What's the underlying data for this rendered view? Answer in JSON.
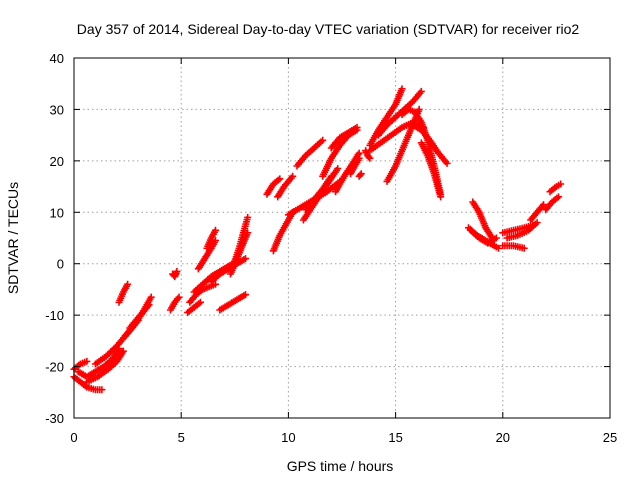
{
  "chart_data": {
    "type": "scatter",
    "title": "Day 357 of 2014, Sidereal Day-to-day VTEC variation (SDTVAR) for receiver rio2",
    "xlabel": "GPS time / hours",
    "ylabel": "SDTVAR / TECUs",
    "xlim": [
      0,
      25
    ],
    "ylim": [
      -30,
      40
    ],
    "xticks": [
      "0",
      "5",
      "10",
      "15",
      "20",
      "25"
    ],
    "yticks": [
      "-30",
      "-20",
      "-10",
      "0",
      "10",
      "20",
      "30",
      "40"
    ],
    "grid": true,
    "marker": "plus",
    "color": "#ff0000",
    "series": [
      {
        "name": "arc-1",
        "x": [
          0.0,
          0.3,
          0.6
        ],
        "y": [
          -20.5,
          -19.5,
          -19.0
        ]
      },
      {
        "name": "arc-2",
        "x": [
          0.0,
          0.3,
          0.6,
          1.0,
          1.3
        ],
        "y": [
          -22.0,
          -23.0,
          -24.0,
          -24.5,
          -24.5
        ]
      },
      {
        "name": "arc-3",
        "x": [
          0.2,
          0.6,
          1.0,
          1.4,
          1.8,
          2.1
        ],
        "y": [
          -21.0,
          -22.0,
          -21.0,
          -20.0,
          -18.5,
          -16.5
        ]
      },
      {
        "name": "arc-4",
        "x": [
          0.6,
          1.1,
          1.6,
          2.0,
          2.3
        ],
        "y": [
          -23.0,
          -22.0,
          -20.5,
          -19.0,
          -17.0
        ]
      },
      {
        "name": "arc-5",
        "x": [
          1.0,
          1.5,
          2.0,
          2.5,
          3.0
        ],
        "y": [
          -19.5,
          -18.0,
          -16.0,
          -13.5,
          -11.0
        ]
      },
      {
        "name": "arc-6",
        "x": [
          2.1,
          2.3,
          2.5
        ],
        "y": [
          -7.5,
          -5.5,
          -4.0
        ]
      },
      {
        "name": "arc-7",
        "x": [
          2.4,
          2.8,
          3.2,
          3.6
        ],
        "y": [
          -14.0,
          -12.0,
          -9.5,
          -6.5
        ]
      },
      {
        "name": "arc-8",
        "x": [
          2.6,
          3.0,
          3.5
        ],
        "y": [
          -12.5,
          -10.5,
          -8.0
        ]
      },
      {
        "name": "arc-9",
        "x": [
          4.6,
          4.7,
          4.8
        ],
        "y": [
          -2.0,
          -2.5,
          -1.5
        ]
      },
      {
        "name": "arc-10",
        "x": [
          4.5,
          4.7,
          4.9
        ],
        "y": [
          -9.0,
          -7.5,
          -6.5
        ]
      },
      {
        "name": "arc-11",
        "x": [
          5.4,
          5.7,
          6.0,
          6.3,
          6.6
        ],
        "y": [
          -7.5,
          -6.0,
          -5.0,
          -4.5,
          -4.0
        ]
      },
      {
        "name": "arc-12",
        "x": [
          5.6,
          6.0,
          6.4,
          6.8,
          7.2,
          7.6
        ],
        "y": [
          -5.5,
          -4.0,
          -2.5,
          -1.5,
          -0.5,
          0.5
        ]
      },
      {
        "name": "arc-13",
        "x": [
          5.8,
          6.1,
          6.4,
          6.6
        ],
        "y": [
          -1.0,
          1.0,
          3.0,
          4.5
        ]
      },
      {
        "name": "arc-14",
        "x": [
          6.2,
          6.4,
          6.6
        ],
        "y": [
          3.0,
          5.0,
          6.5
        ]
      },
      {
        "name": "arc-15",
        "x": [
          5.3,
          5.6,
          5.9
        ],
        "y": [
          -9.5,
          -8.5,
          -7.5
        ]
      },
      {
        "name": "arc-16",
        "x": [
          6.4,
          6.8,
          7.2,
          7.6,
          8.0
        ],
        "y": [
          -3.5,
          -2.0,
          -1.0,
          0.0,
          1.0
        ]
      },
      {
        "name": "arc-17",
        "x": [
          6.8,
          7.2,
          7.6,
          8.0
        ],
        "y": [
          -9.0,
          -8.0,
          -7.0,
          -6.0
        ]
      },
      {
        "name": "arc-18",
        "x": [
          7.5,
          7.7,
          7.9,
          8.1
        ],
        "y": [
          0.5,
          3.0,
          6.0,
          9.0
        ]
      },
      {
        "name": "arc-19",
        "x": [
          7.3,
          7.6,
          7.9,
          8.1
        ],
        "y": [
          -2.0,
          1.0,
          4.0,
          6.0
        ]
      },
      {
        "name": "arc-20",
        "x": [
          9.0,
          9.3,
          9.6
        ],
        "y": [
          13.5,
          15.5,
          16.5
        ]
      },
      {
        "name": "arc-21",
        "x": [
          9.3,
          9.6,
          10.0,
          10.2
        ],
        "y": [
          2.5,
          5.5,
          8.5,
          10.0
        ]
      },
      {
        "name": "arc-22",
        "x": [
          9.5,
          9.8,
          10.2
        ],
        "y": [
          13.0,
          15.0,
          17.0
        ]
      },
      {
        "name": "arc-23",
        "x": [
          10.0,
          10.6,
          11.2,
          11.8,
          12.4
        ],
        "y": [
          9.5,
          11.0,
          12.5,
          14.0,
          16.0
        ]
      },
      {
        "name": "arc-24",
        "x": [
          10.4,
          10.8,
          11.2,
          11.6
        ],
        "y": [
          19.0,
          21.0,
          22.5,
          24.0
        ]
      },
      {
        "name": "arc-25",
        "x": [
          10.8,
          11.2,
          11.6,
          12.0
        ],
        "y": [
          10.5,
          12.5,
          14.5,
          17.0
        ]
      },
      {
        "name": "arc-26",
        "x": [
          10.7,
          11.1,
          11.5,
          11.9,
          12.3
        ],
        "y": [
          8.5,
          11.0,
          13.5,
          16.0,
          18.5
        ]
      },
      {
        "name": "arc-27",
        "x": [
          11.6,
          12.0,
          12.4,
          12.8,
          13.2
        ],
        "y": [
          17.0,
          20.5,
          23.0,
          25.0,
          26.0
        ]
      },
      {
        "name": "arc-28",
        "x": [
          12.0,
          12.4,
          12.8,
          13.2
        ],
        "y": [
          22.5,
          24.5,
          25.5,
          26.5
        ]
      },
      {
        "name": "arc-29",
        "x": [
          12.2,
          12.6,
          13.0,
          13.3
        ],
        "y": [
          14.0,
          17.0,
          19.5,
          21.5
        ]
      },
      {
        "name": "arc-30",
        "x": [
          12.9,
          13.1,
          13.3
        ],
        "y": [
          17.5,
          19.0,
          20.5
        ]
      },
      {
        "name": "arc-31",
        "x": [
          13.3,
          13.4
        ],
        "y": [
          17.0,
          17.5
        ]
      },
      {
        "name": "arc-32",
        "x": [
          13.6,
          13.7,
          13.8
        ],
        "y": [
          22.0,
          21.0,
          20.5
        ]
      },
      {
        "name": "arc-33",
        "x": [
          13.8,
          14.2,
          14.6,
          15.0,
          15.3
        ],
        "y": [
          23.0,
          26.0,
          28.5,
          31.0,
          34.0
        ]
      },
      {
        "name": "arc-34",
        "x": [
          13.8,
          14.3,
          14.8,
          15.3,
          15.8,
          16.3
        ],
        "y": [
          22.0,
          23.5,
          25.0,
          26.5,
          27.5,
          26.5
        ]
      },
      {
        "name": "arc-35",
        "x": [
          14.2,
          14.6,
          15.0,
          15.4,
          15.8,
          16.2
        ],
        "y": [
          25.0,
          27.0,
          28.5,
          30.0,
          31.5,
          33.5
        ]
      },
      {
        "name": "arc-36",
        "x": [
          14.6,
          15.0,
          15.4,
          15.8,
          16.1
        ],
        "y": [
          16.0,
          19.0,
          23.0,
          27.0,
          30.0
        ]
      },
      {
        "name": "arc-37",
        "x": [
          15.3,
          15.6,
          15.9,
          16.2,
          16.5,
          16.8,
          17.1
        ],
        "y": [
          29.0,
          30.0,
          29.5,
          27.5,
          24.0,
          19.0,
          13.5
        ]
      },
      {
        "name": "arc-38",
        "x": [
          15.8,
          16.2,
          16.6,
          17.0,
          17.4
        ],
        "y": [
          27.0,
          26.0,
          24.0,
          21.5,
          19.5
        ]
      },
      {
        "name": "arc-39",
        "x": [
          16.2,
          16.5,
          16.8,
          17.1
        ],
        "y": [
          23.5,
          21.0,
          17.5,
          13.0
        ]
      },
      {
        "name": "arc-40",
        "x": [
          18.4,
          18.8,
          19.2,
          19.6,
          19.8
        ],
        "y": [
          7.0,
          5.5,
          4.5,
          3.5,
          3.0
        ]
      },
      {
        "name": "arc-41",
        "x": [
          18.6,
          18.9,
          19.2,
          19.5
        ],
        "y": [
          12.0,
          10.0,
          7.0,
          5.0
        ]
      },
      {
        "name": "arc-42",
        "x": [
          18.5,
          18.9,
          19.3,
          19.7
        ],
        "y": [
          6.5,
          5.0,
          4.0,
          5.0
        ]
      },
      {
        "name": "arc-43",
        "x": [
          20.0,
          20.5,
          21.0
        ],
        "y": [
          3.5,
          3.5,
          3.0
        ]
      },
      {
        "name": "arc-44",
        "x": [
          20.0,
          20.5,
          21.0,
          21.4
        ],
        "y": [
          6.0,
          6.5,
          7.0,
          7.5
        ]
      },
      {
        "name": "arc-45",
        "x": [
          20.2,
          20.7,
          21.2,
          21.6
        ],
        "y": [
          5.0,
          5.5,
          6.5,
          8.0
        ]
      },
      {
        "name": "arc-46",
        "x": [
          21.3,
          21.6,
          21.9
        ],
        "y": [
          8.5,
          10.0,
          11.5
        ]
      },
      {
        "name": "arc-47",
        "x": [
          22.0,
          22.3,
          22.6
        ],
        "y": [
          10.5,
          12.0,
          13.0
        ]
      },
      {
        "name": "arc-48",
        "x": [
          22.2,
          22.5,
          22.7
        ],
        "y": [
          14.0,
          15.0,
          15.5
        ]
      }
    ]
  }
}
